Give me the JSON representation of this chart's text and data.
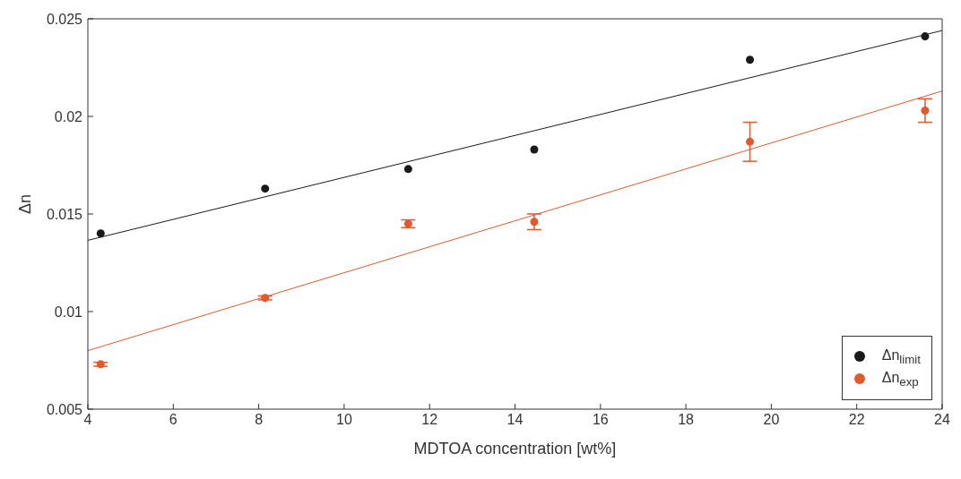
{
  "chart_data": {
    "type": "scatter",
    "xlabel": "MDTOA concentration [wt%]",
    "ylabel": "Δn",
    "xlim": [
      4,
      24
    ],
    "xticks": [
      4,
      6,
      8,
      10,
      12,
      14,
      16,
      18,
      20,
      22,
      24
    ],
    "ylim": [
      0.005,
      0.025
    ],
    "yticks": [
      0.005,
      0.01,
      0.015,
      0.02,
      0.025
    ],
    "legend": "bottom right",
    "marker": "circle",
    "series": [
      {
        "name": "Δn$_{limit}$",
        "color": "#1a1a1a",
        "x": [
          4.3,
          8.15,
          11.5,
          14.45,
          19.5,
          23.6
        ],
        "values": [
          0.014,
          0.0163,
          0.0173,
          0.0183,
          0.0229,
          0.0241
        ]
      },
      {
        "name": "Δn$_{exp}$",
        "color": "#e05a2b",
        "x": [
          4.3,
          8.15,
          11.5,
          14.45,
          19.5,
          23.6
        ],
        "values": [
          0.0073,
          0.0107,
          0.0145,
          0.0146,
          0.0187,
          0.0203
        ],
        "errors": [
          0.0001,
          0.0001,
          0.0002,
          0.0004,
          0.001,
          0.0006
        ]
      },
      {
        "type": "line",
        "marker": "none",
        "color": "#1a1a1a",
        "x": [
          4,
          24
        ],
        "values": [
          0.01365,
          0.0244
        ]
      },
      {
        "type": "line",
        "marker": "none",
        "color": "#e05a2b",
        "x": [
          4,
          24
        ],
        "values": [
          0.008,
          0.0213
        ]
      }
    ]
  }
}
